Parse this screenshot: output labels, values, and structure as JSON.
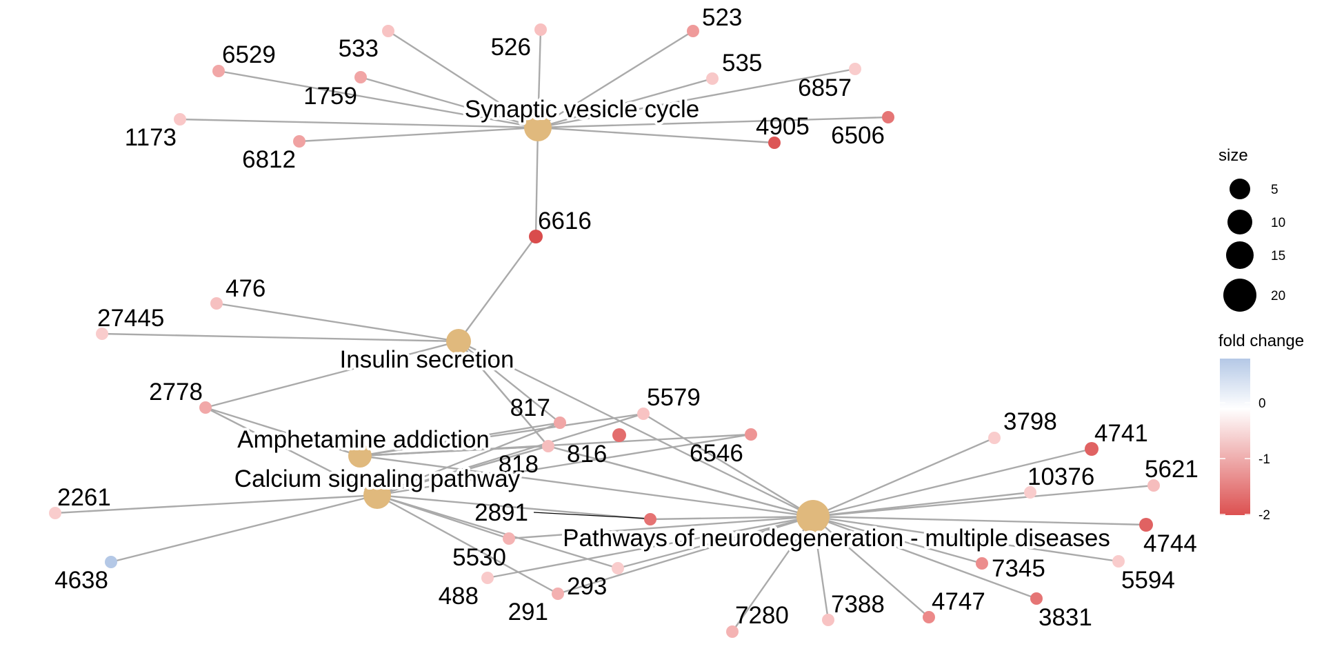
{
  "pathways": [
    {
      "id": "svc",
      "label": "Synaptic vesicle cycle"
    },
    {
      "id": "ins",
      "label": "Insulin secretion"
    },
    {
      "id": "amp",
      "label": "Amphetamine addiction"
    },
    {
      "id": "cal",
      "label": "Calcium signaling pathway"
    },
    {
      "id": "neu",
      "label": "Pathways of neurodegeneration - multiple diseases"
    }
  ],
  "genes": [
    {
      "id": "533",
      "label": "533"
    },
    {
      "id": "526",
      "label": "526"
    },
    {
      "id": "523",
      "label": "523"
    },
    {
      "id": "6529",
      "label": "6529"
    },
    {
      "id": "1759",
      "label": "1759"
    },
    {
      "id": "535",
      "label": "535"
    },
    {
      "id": "6857",
      "label": "6857"
    },
    {
      "id": "1173",
      "label": "1173"
    },
    {
      "id": "6812",
      "label": "6812"
    },
    {
      "id": "4905",
      "label": "4905"
    },
    {
      "id": "6506",
      "label": "6506"
    },
    {
      "id": "6616",
      "label": "6616"
    },
    {
      "id": "476",
      "label": "476"
    },
    {
      "id": "27445",
      "label": "27445"
    },
    {
      "id": "2778",
      "label": "2778"
    },
    {
      "id": "817",
      "label": "817"
    },
    {
      "id": "5579",
      "label": "5579"
    },
    {
      "id": "816",
      "label": "816"
    },
    {
      "id": "6546",
      "label": "6546"
    },
    {
      "id": "818",
      "label": "818"
    },
    {
      "id": "g889",
      "label": ""
    },
    {
      "id": "2261",
      "label": "2261"
    },
    {
      "id": "4638",
      "label": "4638"
    },
    {
      "id": "2891",
      "label": "2891"
    },
    {
      "id": "5530",
      "label": "5530"
    },
    {
      "id": "488",
      "label": "488"
    },
    {
      "id": "291",
      "label": "291"
    },
    {
      "id": "293",
      "label": "293"
    },
    {
      "id": "3798",
      "label": "3798"
    },
    {
      "id": "4741",
      "label": "4741"
    },
    {
      "id": "10376",
      "label": "10376"
    },
    {
      "id": "5621",
      "label": "5621"
    },
    {
      "id": "4744",
      "label": "4744"
    },
    {
      "id": "7345",
      "label": "7345"
    },
    {
      "id": "5594",
      "label": "5594"
    },
    {
      "id": "3831",
      "label": "3831"
    },
    {
      "id": "4747",
      "label": "4747"
    },
    {
      "id": "7388",
      "label": "7388"
    },
    {
      "id": "7280",
      "label": "7280"
    }
  ],
  "edges": [
    [
      "svc",
      "533"
    ],
    [
      "svc",
      "526"
    ],
    [
      "svc",
      "523"
    ],
    [
      "svc",
      "6529"
    ],
    [
      "svc",
      "1759"
    ],
    [
      "svc",
      "535"
    ],
    [
      "svc",
      "6857"
    ],
    [
      "svc",
      "1173"
    ],
    [
      "svc",
      "6812"
    ],
    [
      "svc",
      "4905"
    ],
    [
      "svc",
      "6506"
    ],
    [
      "svc",
      "6616"
    ],
    [
      "ins",
      "6616"
    ],
    [
      "ins",
      "476"
    ],
    [
      "ins",
      "27445"
    ],
    [
      "ins",
      "2778"
    ],
    [
      "ins",
      "817"
    ],
    [
      "ins",
      "816"
    ],
    [
      "ins",
      "818"
    ],
    [
      "amp",
      "2778"
    ],
    [
      "amp",
      "817"
    ],
    [
      "amp",
      "5579"
    ],
    [
      "amp",
      "816"
    ],
    [
      "amp",
      "818"
    ],
    [
      "amp",
      "g889"
    ],
    [
      "cal",
      "2778"
    ],
    [
      "cal",
      "817"
    ],
    [
      "cal",
      "5579"
    ],
    [
      "cal",
      "816"
    ],
    [
      "cal",
      "818"
    ],
    [
      "cal",
      "g889"
    ],
    [
      "cal",
      "2261"
    ],
    [
      "cal",
      "4638"
    ],
    [
      "cal",
      "5530"
    ],
    [
      "cal",
      "291"
    ],
    [
      "cal",
      "293"
    ],
    [
      "cal",
      "2891"
    ],
    [
      "neu",
      "ins"
    ],
    [
      "neu",
      "5579"
    ],
    [
      "neu",
      "816"
    ],
    [
      "neu",
      "818"
    ],
    [
      "neu",
      "2891"
    ],
    [
      "neu",
      "5530"
    ],
    [
      "neu",
      "488"
    ],
    [
      "neu",
      "291"
    ],
    [
      "neu",
      "293"
    ],
    [
      "neu",
      "3798"
    ],
    [
      "neu",
      "4741"
    ],
    [
      "neu",
      "10376"
    ],
    [
      "neu",
      "5621"
    ],
    [
      "neu",
      "4744"
    ],
    [
      "neu",
      "7345"
    ],
    [
      "neu",
      "5594"
    ],
    [
      "neu",
      "3831"
    ],
    [
      "neu",
      "4747"
    ],
    [
      "neu",
      "7388"
    ],
    [
      "neu",
      "7280"
    ],
    [
      "amp",
      "neu"
    ]
  ],
  "legend": {
    "size_title": "size",
    "size_values": [
      5,
      10,
      15,
      20
    ],
    "color_title": "fold change",
    "color_ticks": [
      "0",
      "-1",
      "-2"
    ],
    "colors": {
      "high": "#b4c8e6",
      "mid": "#ffffff",
      "low": "#dc5050"
    },
    "pathway_color": "#e0b97d"
  }
}
